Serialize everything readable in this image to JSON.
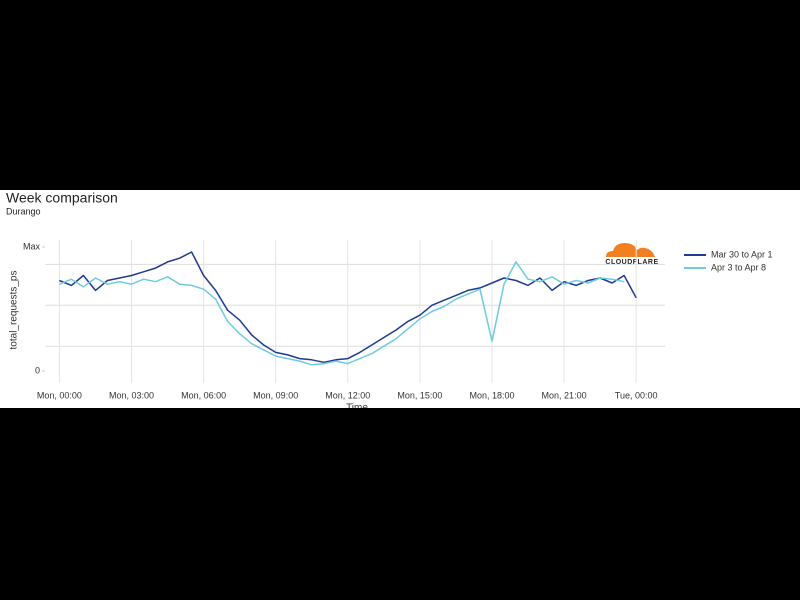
{
  "chart_data": {
    "type": "line",
    "title": "Week comparison",
    "subtitle": "Durango",
    "x_label": "Time",
    "y_label": "total_requests_ps",
    "logo_text": "CLOUDFLARE",
    "x": [
      0,
      0.5,
      1,
      1.5,
      2,
      2.5,
      3,
      3.5,
      4,
      4.5,
      5,
      5.5,
      6,
      6.5,
      7,
      7.5,
      8,
      8.5,
      9,
      9.5,
      10,
      10.5,
      11,
      11.5,
      12,
      12.5,
      13,
      13.5,
      14,
      14.5,
      15,
      15.5,
      16,
      16.5,
      17,
      17.5,
      18,
      18.5,
      19,
      19.5,
      20,
      20.5,
      21,
      21.5,
      22,
      22.5,
      23,
      23.5,
      24
    ],
    "series": [
      {
        "name": "Mar 30 to Apr 1",
        "color": "#1f3a93",
        "values": [
          73,
          69,
          77,
          65,
          73,
          75,
          77,
          80,
          83,
          88,
          91,
          96,
          77,
          65,
          49,
          41,
          29,
          21,
          15,
          13,
          10,
          9,
          7,
          9,
          10,
          15,
          21,
          27,
          33,
          40,
          45,
          53,
          57,
          61,
          65,
          67,
          71,
          75,
          73,
          69,
          75,
          65,
          72,
          69,
          73,
          75,
          71,
          77,
          59
        ]
      },
      {
        "name": "Apr 3 to Apr 8",
        "color": "#6fcbe0",
        "values": [
          70,
          74,
          68,
          75,
          70,
          72,
          70,
          74,
          72,
          76,
          70,
          69,
          66,
          58,
          40,
          30,
          22,
          17,
          12,
          10,
          8,
          5,
          6,
          8,
          6,
          10,
          14,
          20,
          26,
          34,
          42,
          48,
          52,
          58,
          62,
          66,
          24,
          70,
          88,
          74,
          72,
          76,
          70,
          73,
          71,
          75,
          74,
          72,
          null
        ]
      }
    ],
    "xlim": [
      -0.6,
      25.2
    ],
    "xticks": [
      {
        "value": 0,
        "label": "Mon, 00:00"
      },
      {
        "value": 3,
        "label": "Mon, 03:00"
      },
      {
        "value": 6,
        "label": "Mon, 06:00"
      },
      {
        "value": 9,
        "label": "Mon, 09:00"
      },
      {
        "value": 12,
        "label": "Mon, 12:00"
      },
      {
        "value": 15,
        "label": "Mon, 15:00"
      },
      {
        "value": 18,
        "label": "Mon, 18:00"
      },
      {
        "value": 21,
        "label": "Mon, 21:00"
      },
      {
        "value": 24,
        "label": "Tue, 00:00"
      }
    ],
    "ylim": [
      0,
      100
    ],
    "yticks": [
      {
        "value": 0,
        "label": "0"
      },
      {
        "value": 100,
        "label": "Max"
      }
    ],
    "ygrid": [
      20,
      53,
      86
    ],
    "grid": true,
    "legend": "right"
  }
}
